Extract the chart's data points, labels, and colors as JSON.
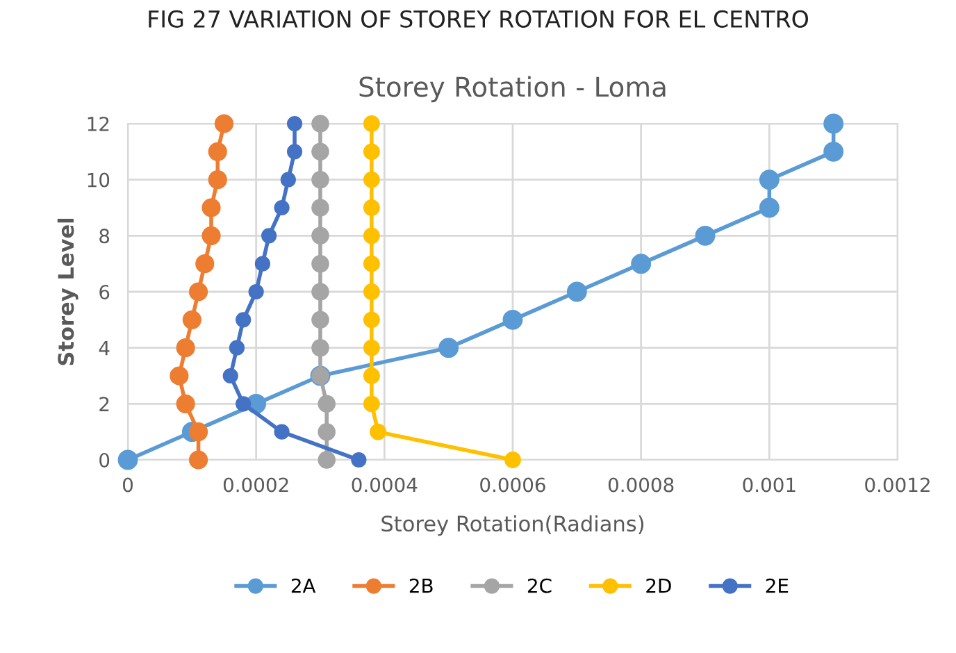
{
  "chart_data": {
    "type": "line",
    "title": "Storey Rotation - Loma",
    "xlabel": "Storey Rotation(Radians)",
    "ylabel": "Storey Level",
    "annotations": [
      "FIG 27 VARIATION OF STOREY ROTATION FOR EL CENTRO"
    ],
    "series": [
      {
        "name": "2A",
        "color": "#5b9bd5",
        "x": [
          0,
          0.0001,
          0.0002,
          0.0003,
          0.0005,
          0.0006,
          0.0007,
          0.0008,
          0.0009,
          0.001,
          0.001,
          0.0011,
          0.0011
        ],
        "values": [
          0,
          1,
          2,
          3,
          4,
          5,
          6,
          7,
          8,
          9,
          10,
          11,
          12
        ]
      },
      {
        "name": "2B",
        "color": "#ed7d31",
        "x": [
          0.00011,
          0.00011,
          9e-05,
          8e-05,
          9e-05,
          0.0001,
          0.00011,
          0.00012,
          0.00013,
          0.00013,
          0.00014,
          0.00014,
          0.00015
        ],
        "values": [
          0,
          1,
          2,
          3,
          4,
          5,
          6,
          7,
          8,
          9,
          10,
          11,
          12
        ]
      },
      {
        "name": "2C",
        "color": "#a5a5a5",
        "x": [
          0.00031,
          0.00031,
          0.00031,
          0.0003,
          0.0003,
          0.0003,
          0.0003,
          0.0003,
          0.0003,
          0.0003,
          0.0003,
          0.0003,
          0.0003
        ],
        "values": [
          0,
          1,
          2,
          3,
          4,
          5,
          6,
          7,
          8,
          9,
          10,
          11,
          12
        ]
      },
      {
        "name": "2D",
        "color": "#ffc000",
        "x": [
          0.0006,
          0.00039,
          0.00038,
          0.00038,
          0.00038,
          0.00038,
          0.00038,
          0.00038,
          0.00038,
          0.00038,
          0.00038,
          0.00038,
          0.00038
        ],
        "values": [
          0,
          1,
          2,
          3,
          4,
          5,
          6,
          7,
          8,
          9,
          10,
          11,
          12
        ]
      },
      {
        "name": "2E",
        "color": "#4472c4",
        "x": [
          0.00036,
          0.00024,
          0.00018,
          0.00016,
          0.00017,
          0.00018,
          0.0002,
          0.00021,
          0.00022,
          0.00024,
          0.00025,
          0.00026,
          0.00026
        ],
        "values": [
          0,
          1,
          2,
          3,
          4,
          5,
          6,
          7,
          8,
          9,
          10,
          11,
          12
        ]
      }
    ],
    "xlim": [
      0,
      0.0012
    ],
    "xticks": [
      0,
      0.0002,
      0.0004,
      0.0006,
      0.0008,
      0.001,
      0.0012
    ],
    "ylim": [
      0,
      12
    ],
    "yticks": [
      0,
      2,
      4,
      6,
      8,
      10,
      12
    ],
    "grid": true,
    "legend": "bottom",
    "marker": "circle",
    "line_style": "solid"
  }
}
